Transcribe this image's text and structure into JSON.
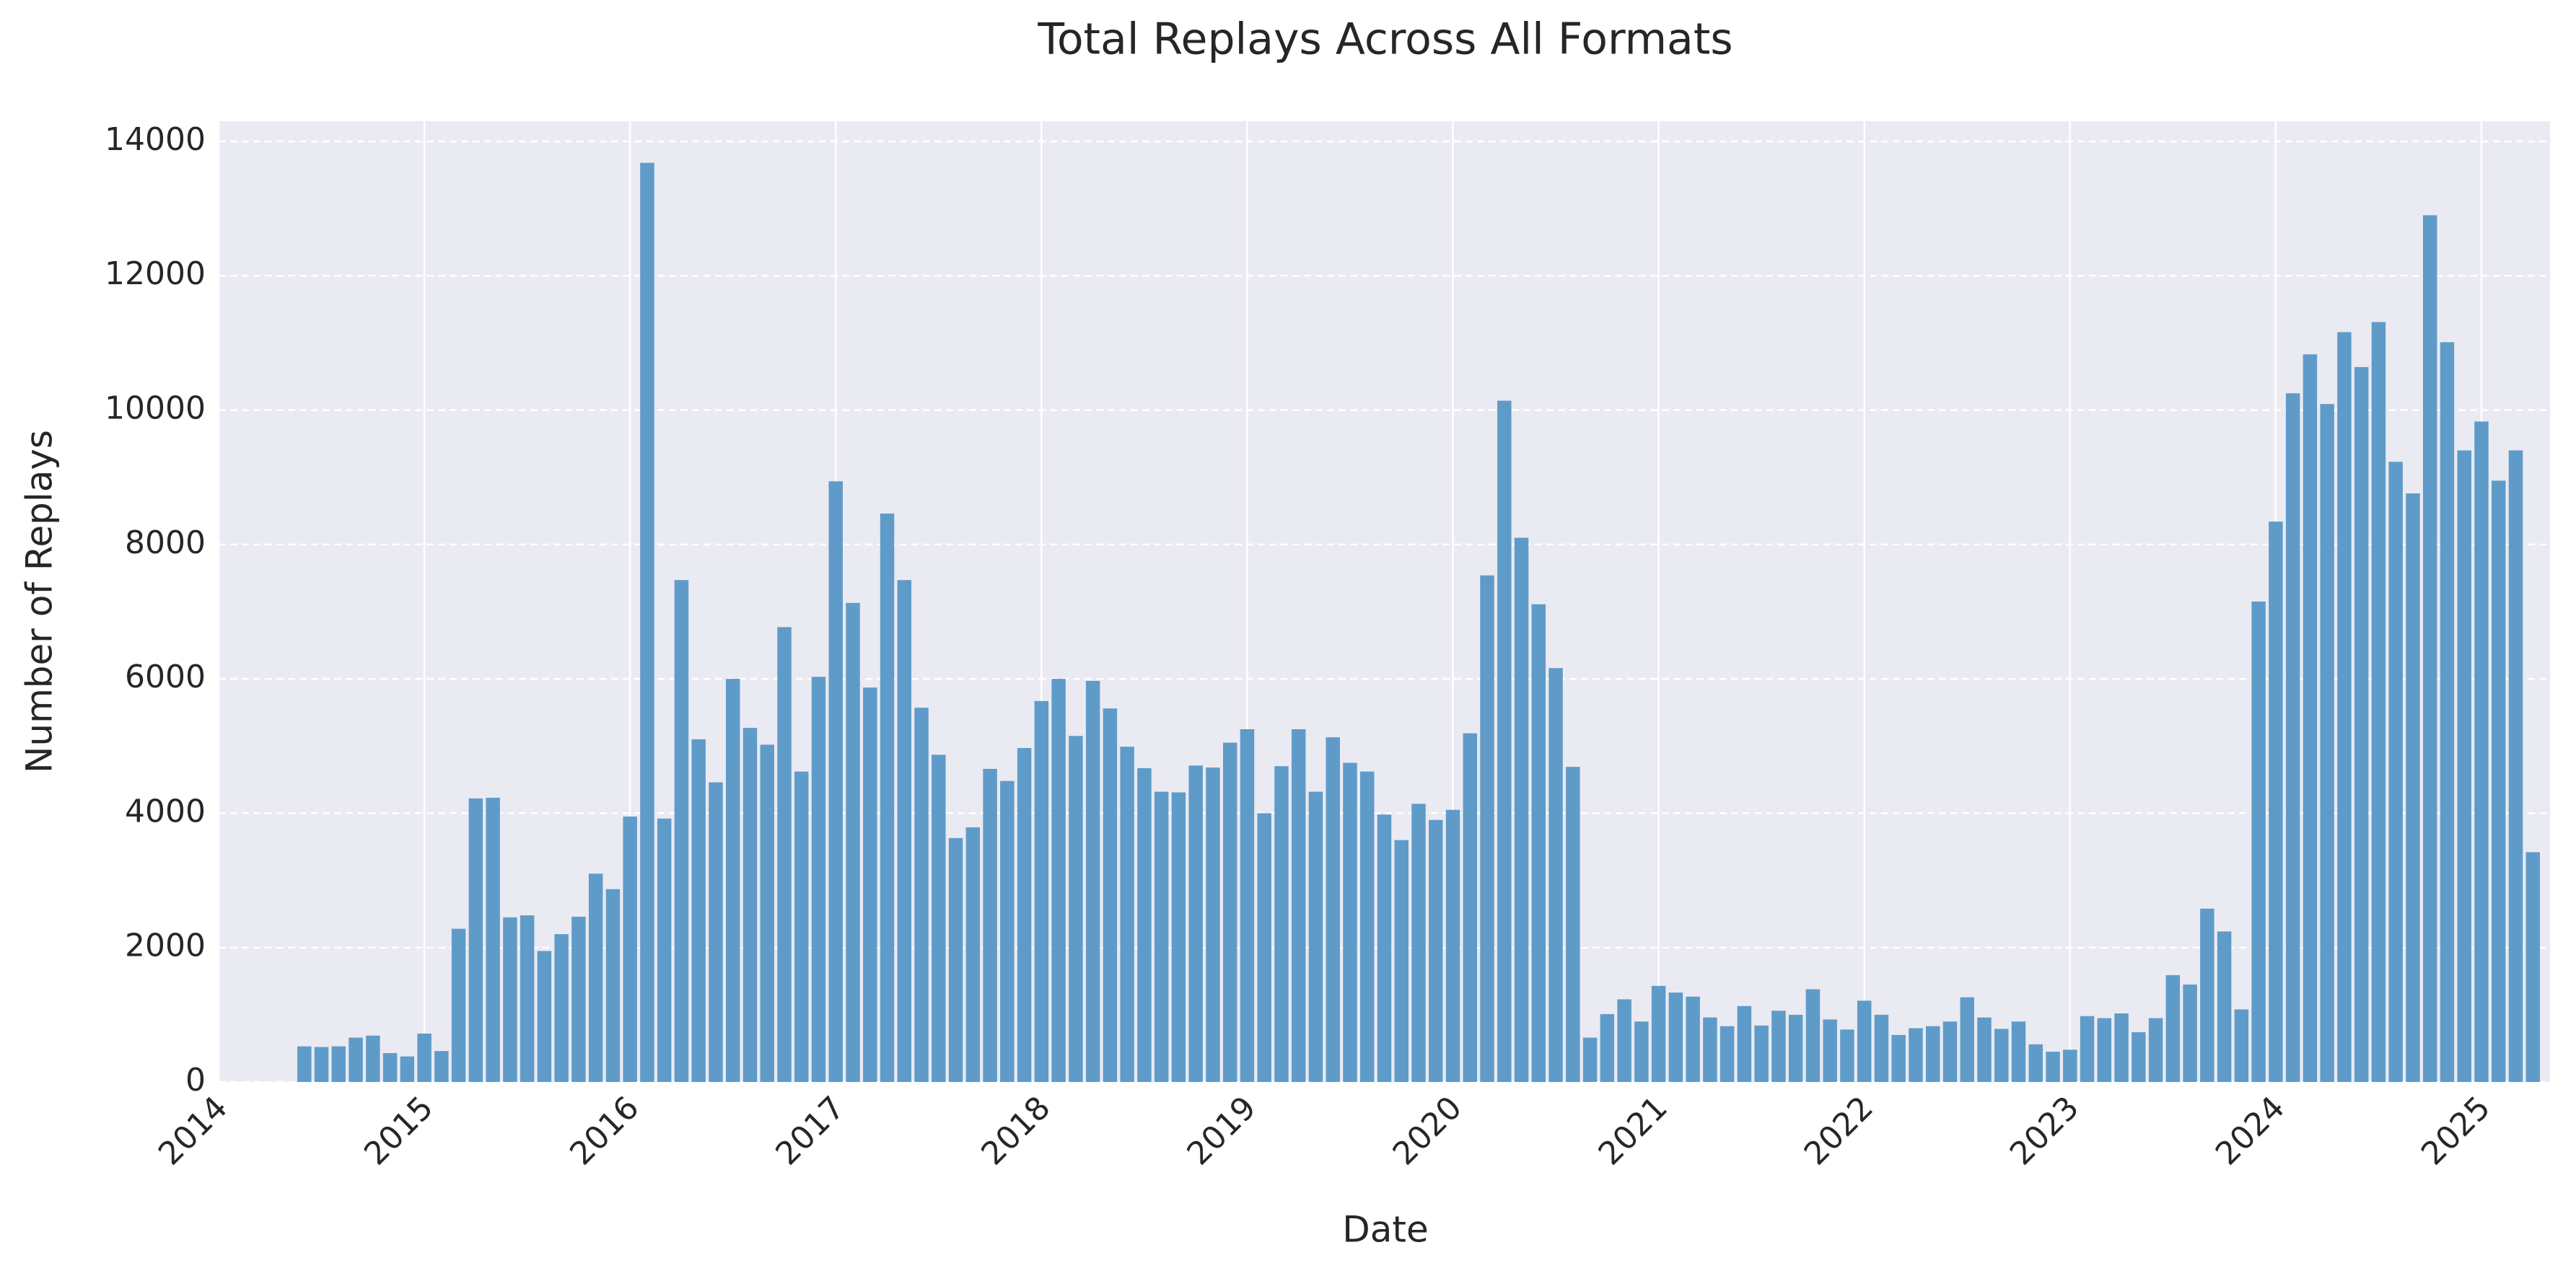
{
  "chart_data": {
    "type": "bar",
    "title": "Total Replays Across All Formats",
    "x_label": "Date",
    "y_label": "Number of Replays",
    "color": "#5f9bc9",
    "grid": true,
    "x": [
      "2014-06",
      "2014-07",
      "2014-08",
      "2014-09",
      "2014-10",
      "2014-11",
      "2014-12",
      "2015-01",
      "2015-02",
      "2015-03",
      "2015-04",
      "2015-05",
      "2015-06",
      "2015-07",
      "2015-08",
      "2015-09",
      "2015-10",
      "2015-11",
      "2015-12",
      "2016-01",
      "2016-02",
      "2016-03",
      "2016-04",
      "2016-05",
      "2016-06",
      "2016-07",
      "2016-08",
      "2016-09",
      "2016-10",
      "2016-11",
      "2016-12",
      "2017-01",
      "2017-02",
      "2017-03",
      "2017-04",
      "2017-05",
      "2017-06",
      "2017-07",
      "2017-08",
      "2017-09",
      "2017-10",
      "2017-11",
      "2017-12",
      "2018-01",
      "2018-02",
      "2018-03",
      "2018-04",
      "2018-05",
      "2018-06",
      "2018-07",
      "2018-08",
      "2018-09",
      "2018-10",
      "2018-11",
      "2018-12",
      "2019-01",
      "2019-02",
      "2019-03",
      "2019-04",
      "2019-05",
      "2019-06",
      "2019-07",
      "2019-08",
      "2019-09",
      "2019-10",
      "2019-11",
      "2019-12",
      "2020-01",
      "2020-02",
      "2020-03",
      "2020-04",
      "2020-05",
      "2020-06",
      "2020-07",
      "2020-08",
      "2020-09",
      "2020-10",
      "2020-11",
      "2020-12",
      "2021-01",
      "2021-02",
      "2021-03",
      "2021-04",
      "2021-05",
      "2021-06",
      "2021-07",
      "2021-08",
      "2021-09",
      "2021-10",
      "2021-11",
      "2021-12",
      "2022-01",
      "2022-02",
      "2022-03",
      "2022-04",
      "2022-05",
      "2022-06",
      "2022-07",
      "2022-08",
      "2022-09",
      "2022-10",
      "2022-11",
      "2022-12",
      "2023-01",
      "2023-02",
      "2023-03",
      "2023-04",
      "2023-05",
      "2023-06",
      "2023-07",
      "2023-08",
      "2023-09",
      "2023-10",
      "2023-11",
      "2023-12",
      "2024-01",
      "2024-02",
      "2024-03",
      "2024-04",
      "2024-05",
      "2024-06",
      "2024-07",
      "2024-08",
      "2024-09",
      "2024-10",
      "2024-11",
      "2024-12",
      "2025-01",
      "2025-02",
      "2025-03",
      "2025-04"
    ],
    "values": [
      530,
      520,
      530,
      660,
      690,
      430,
      380,
      720,
      460,
      2280,
      4220,
      4230,
      2450,
      2480,
      1950,
      2200,
      2460,
      3100,
      2870,
      3950,
      13680,
      3920,
      7470,
      5100,
      4460,
      6000,
      5270,
      5020,
      6770,
      4620,
      6030,
      8940,
      7130,
      5870,
      8460,
      7470,
      5570,
      4870,
      3630,
      3790,
      4660,
      4480,
      4970,
      5670,
      6000,
      5150,
      5970,
      5560,
      4990,
      4670,
      4320,
      4310,
      4710,
      4680,
      5050,
      5250,
      4000,
      4700,
      5250,
      4320,
      5130,
      4750,
      4620,
      3980,
      3600,
      4140,
      3900,
      4050,
      5190,
      7540,
      10140,
      8100,
      7110,
      6160,
      4690,
      660,
      1010,
      1230,
      900,
      1430,
      1330,
      1270,
      960,
      830,
      1130,
      840,
      1060,
      1000,
      1380,
      930,
      780,
      1210,
      1000,
      700,
      800,
      830,
      900,
      1260,
      960,
      790,
      900,
      560,
      450,
      480,
      980,
      950,
      1020,
      740,
      950,
      1590,
      1450,
      2580,
      2240,
      1080,
      7150,
      8340,
      10250,
      10830,
      10090,
      11160,
      10640,
      11310,
      9230,
      8760,
      12900,
      11010,
      9400,
      9830,
      8950,
      9400,
      3420
    ],
    "xlim": [
      "2014-01",
      "2025-05"
    ],
    "xticks": [
      "2014",
      "2015",
      "2016",
      "2017",
      "2018",
      "2019",
      "2020",
      "2021",
      "2022",
      "2023",
      "2024",
      "2025"
    ],
    "ylim": [
      0,
      14300
    ],
    "yticks": [
      0,
      2000,
      4000,
      6000,
      8000,
      10000,
      12000,
      14000
    ]
  }
}
